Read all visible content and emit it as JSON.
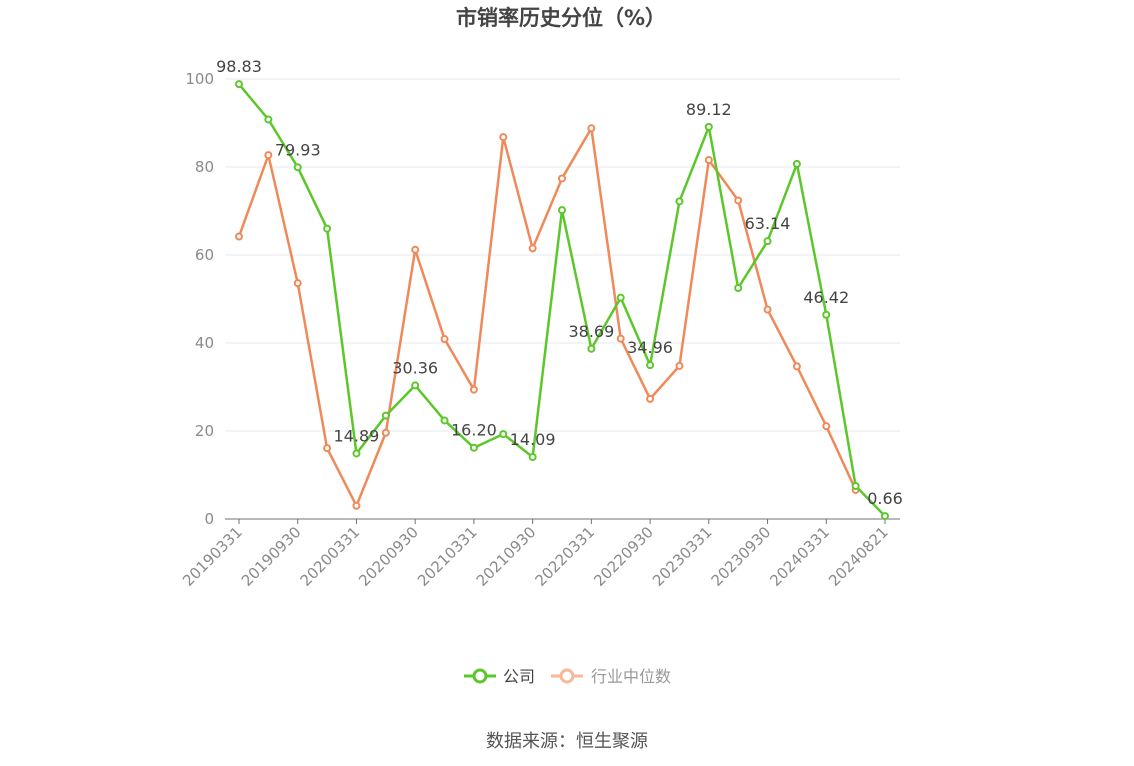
{
  "chart_data": {
    "type": "line",
    "title": "市销率历史分位（%）",
    "ylim": [
      0,
      100
    ],
    "yticks": [
      0,
      20,
      40,
      60,
      80,
      100
    ],
    "xtick_labels": [
      "20190331",
      "20190930",
      "20200331",
      "20200930",
      "20210331",
      "20210930",
      "20220331",
      "20220930",
      "20230331",
      "20230930",
      "20240331",
      "20240821"
    ],
    "x": [
      "20190331",
      "20190630",
      "20190930",
      "20191231",
      "20200331",
      "20200630",
      "20200930",
      "20201231",
      "20210331",
      "20210630",
      "20210930",
      "20211231",
      "20220331",
      "20220630",
      "20220930",
      "20221231",
      "20230331",
      "20230630",
      "20230930",
      "20231231",
      "20240331",
      "20240630",
      "20240821"
    ],
    "series": [
      {
        "name": "公司",
        "color": "#5cc72b",
        "values": [
          98.83,
          90.8,
          79.93,
          66.0,
          14.89,
          23.5,
          30.36,
          22.4,
          16.2,
          19.3,
          14.09,
          70.2,
          38.69,
          50.3,
          34.96,
          72.2,
          89.12,
          52.5,
          63.14,
          80.7,
          46.42,
          7.5,
          0.66
        ],
        "labels": {
          "0": "98.83",
          "2": "79.93",
          "4": "14.89",
          "6": "30.36",
          "8": "16.20",
          "10": "14.09",
          "12": "38.69",
          "14": "34.96",
          "16": "89.12",
          "18": "63.14",
          "20": "46.42",
          "22": "0.66"
        }
      },
      {
        "name": "行业中位数",
        "color": "#f0895a",
        "values": [
          64.2,
          82.7,
          53.6,
          16.1,
          3.0,
          19.6,
          61.2,
          40.9,
          29.4,
          86.8,
          61.5,
          77.4,
          88.8,
          41.0,
          27.3,
          34.8,
          81.6,
          72.4,
          47.6,
          34.7,
          21.1,
          6.6,
          null
        ]
      }
    ],
    "grid": true,
    "legend_position": "bottom-center"
  },
  "legend": {
    "company_label": "公司",
    "industry_label": "行业中位数",
    "company_text_color": "#444444",
    "industry_text_color": "#999999",
    "industry_icon_color": "#f7b99a"
  },
  "source": "数据来源：恒生聚源"
}
